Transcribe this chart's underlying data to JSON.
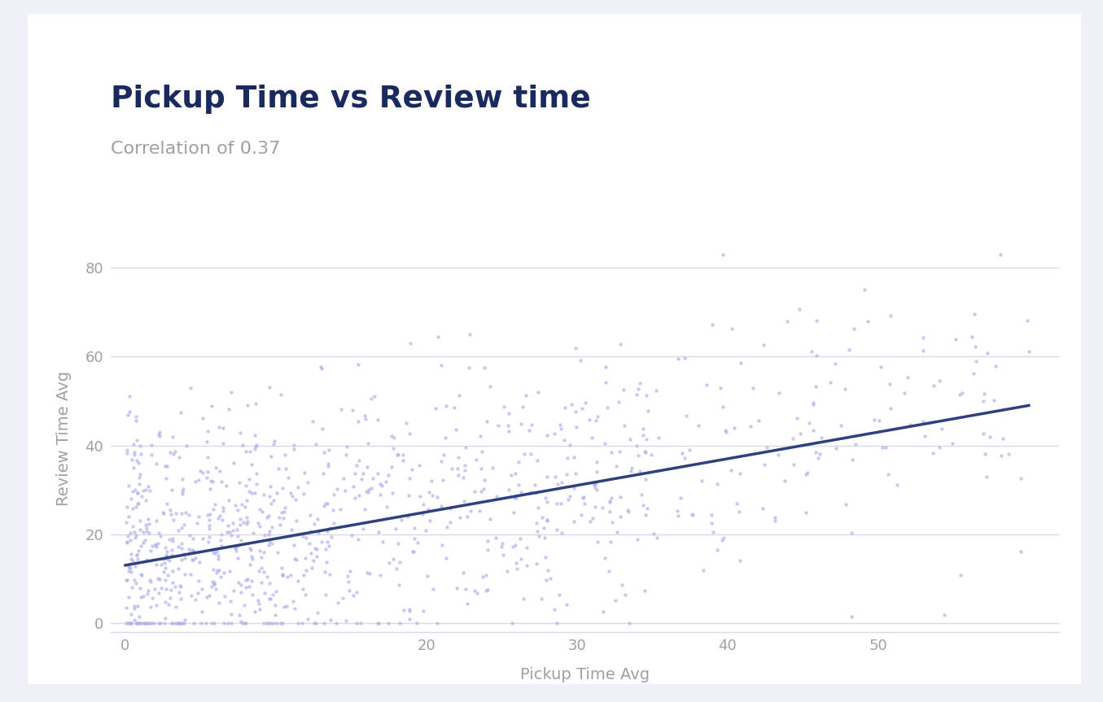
{
  "title": "Pickup Time vs Review time",
  "subtitle": "Correlation of 0.37",
  "xlabel": "Pickup Time Avg",
  "ylabel": "Review Time Avg",
  "title_color": "#1a2a5e",
  "subtitle_color": "#a0a0a0",
  "label_color": "#a0a0a0",
  "tick_color": "#a0a0a0",
  "scatter_color": "#b0b3e8",
  "scatter_alpha": 0.7,
  "scatter_size": 10,
  "line_color": "#2e4080",
  "line_width": 2.5,
  "regression_intercept": 13.0,
  "regression_slope": 0.6,
  "xlim": [
    -1,
    62
  ],
  "ylim": [
    -2,
    85
  ],
  "xticks": [
    0,
    20,
    30,
    40,
    50
  ],
  "yticks": [
    0,
    20,
    40,
    60,
    80
  ],
  "background_color": "#eef0f8",
  "card_color": "#ffffff",
  "plot_bg_color": "#ffffff",
  "grid_color": "#d8daea",
  "seed": 42,
  "n_points": 1000
}
